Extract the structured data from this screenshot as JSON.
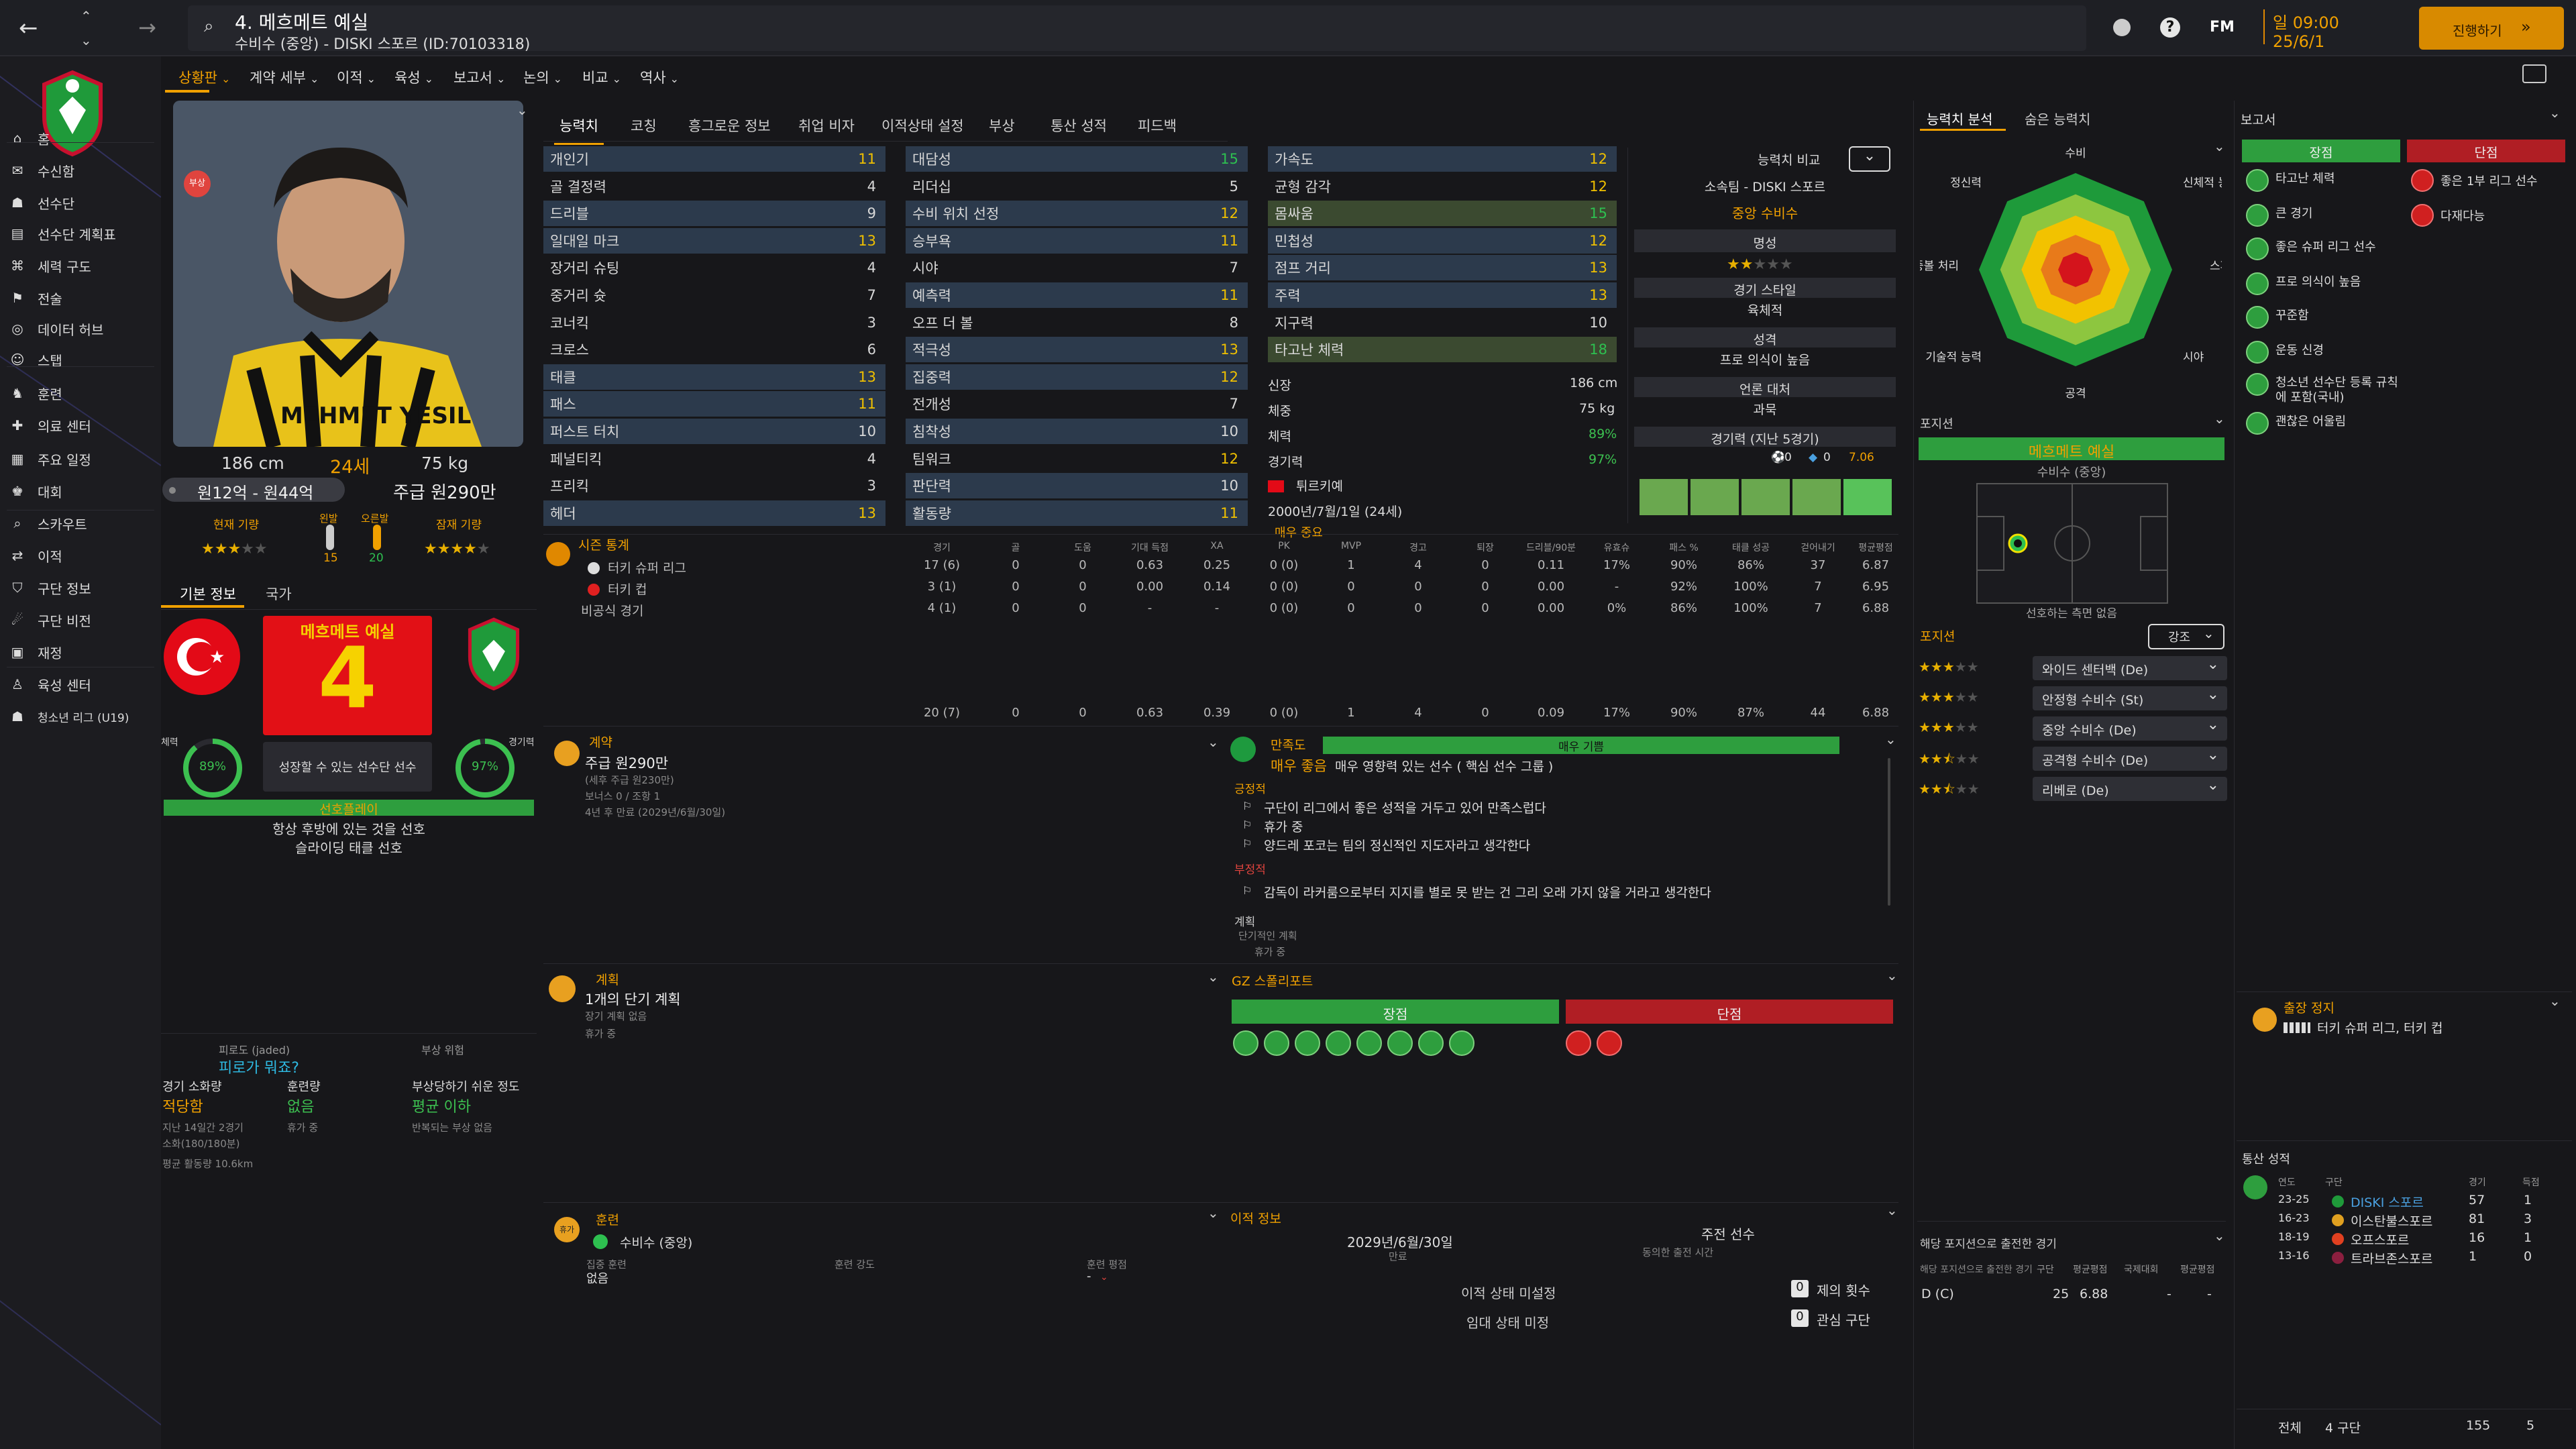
{
  "header": {
    "title": "4. 메흐메트 예실",
    "subtitle": "수비수 (중앙) - DISKI 스포르 (ID:70103318)",
    "date_line1": "일 09:00",
    "date_line2": "25/6/1",
    "continue": "진행하기",
    "fm": "FM",
    "help": "?"
  },
  "menus": [
    {
      "label": "상황판",
      "active": true
    },
    {
      "label": "계약 세부"
    },
    {
      "label": "이적"
    },
    {
      "label": "육성"
    },
    {
      "label": "보고서"
    },
    {
      "label": "논의"
    },
    {
      "label": "비교"
    },
    {
      "label": "역사"
    }
  ],
  "sidebar": [
    {
      "label": "홈"
    },
    {
      "label": "수신함"
    },
    {
      "label": "선수단"
    },
    {
      "label": "선수단 계획표"
    },
    {
      "label": "세력 구도"
    },
    {
      "label": "전술"
    },
    {
      "label": "데이터 허브"
    },
    {
      "label": "스탭"
    },
    {
      "label": "훈련"
    },
    {
      "label": "의료 센터"
    },
    {
      "label": "주요 일정"
    },
    {
      "label": "대회"
    },
    {
      "label": "스카우트"
    },
    {
      "label": "이적"
    },
    {
      "label": "구단 정보"
    },
    {
      "label": "구단 비전"
    },
    {
      "label": "재정"
    },
    {
      "label": "육성 센터"
    },
    {
      "label": "청소년 리그 (U19)"
    }
  ],
  "profile": {
    "injured_badge": "부상",
    "jersey_text": "MEHMET YESIL",
    "height": "186 cm",
    "age": "24세",
    "weight": "75 kg",
    "value": "원12억 - 원44억",
    "wage": "주급 원290만",
    "current_ability_label": "현재 기량",
    "potential_label": "잠재 기량",
    "current_stars": 3,
    "potential_stars": 4,
    "left_foot_label": "왼발",
    "right_foot_label": "오른발",
    "left_foot": "15",
    "right_foot": "20",
    "tab_basic": "기본 정보",
    "tab_nation": "국가",
    "name_card": "메흐메트 예실",
    "number": "4",
    "card_caption": "성장할 수 있는 선수단 선수",
    "fitness_label": "체력",
    "fitness": "89%",
    "condition_label": "경기력",
    "condition": "97%",
    "status_bar": "선호플레이",
    "pref1": "항상 후방에 있는 것을 선호",
    "pref2": "슬라이딩 태클 선호"
  },
  "fatigue": {
    "label": "피로도 (jaded)",
    "value": "피로가 뭐죠?",
    "injury_risk_label": "부상 위험",
    "load_label": "경기 소화량",
    "load_value": "적당함",
    "training_load_label": "훈련량",
    "training_value": "없음",
    "injury_prone_label": "부상당하기 쉬운 정도",
    "injury_prone_value": "평균 이하",
    "load_desc1": "지난 14일간 2경기",
    "load_desc2": "소화(180/180분)",
    "training_desc": "휴가 중",
    "injury_desc": "반복되는 부상 없음",
    "avg_distance": "평균 활동량 10.6km"
  },
  "tabs": [
    {
      "label": "능력치",
      "active": true
    },
    {
      "label": "코칭"
    },
    {
      "label": "흥그로운 정보"
    },
    {
      "label": "취업 비자"
    },
    {
      "label": "이적상태 설정"
    },
    {
      "label": "부상"
    },
    {
      "label": "통산 성적"
    },
    {
      "label": "피드백"
    }
  ],
  "attributes": {
    "technical": [
      [
        "개인기",
        "11"
      ],
      [
        "골 결정력",
        "4"
      ],
      [
        "드리블",
        "9"
      ],
      [
        "일대일 마크",
        "13"
      ],
      [
        "장거리 슈팅",
        "4"
      ],
      [
        "중거리 슛",
        "7"
      ],
      [
        "코너킥",
        "3"
      ],
      [
        "크로스",
        "6"
      ],
      [
        "태클",
        "13"
      ],
      [
        "패스",
        "11"
      ],
      [
        "퍼스트 터치",
        "10"
      ],
      [
        "페널티킥",
        "4"
      ],
      [
        "프리킥",
        "3"
      ],
      [
        "헤더",
        "13"
      ]
    ],
    "mental": [
      [
        "대담성",
        "15"
      ],
      [
        "리더십",
        "5"
      ],
      [
        "수비 위치 선정",
        "12"
      ],
      [
        "승부욕",
        "11"
      ],
      [
        "시야",
        "7"
      ],
      [
        "예측력",
        "11"
      ],
      [
        "오프 더 볼",
        "8"
      ],
      [
        "적극성",
        "13"
      ],
      [
        "집중력",
        "12"
      ],
      [
        "전개성",
        "7"
      ],
      [
        "침착성",
        "10"
      ],
      [
        "팀워크",
        "12"
      ],
      [
        "판단력",
        "10"
      ],
      [
        "활동량",
        "11"
      ]
    ],
    "physical": [
      [
        "가속도",
        "12"
      ],
      [
        "균형 감각",
        "12"
      ],
      [
        "몸싸움",
        "15"
      ],
      [
        "민첩성",
        "12"
      ],
      [
        "점프 거리",
        "13"
      ],
      [
        "주력",
        "13"
      ],
      [
        "지구력",
        "10"
      ],
      [
        "타고난 체력",
        "18"
      ]
    ]
  },
  "physical_info": {
    "height_label": "신장",
    "height": "186 cm",
    "weight_label": "체중",
    "weight": "75 kg",
    "fitness_label": "체력",
    "fitness": "89%",
    "condition_label": "경기력",
    "condition": "97%",
    "nationality": "튀르키예",
    "dob": "2000년/7월/1일 (24세)",
    "team_role": "매우 중요"
  },
  "compare": {
    "label": "능력치 비교",
    "club": "소속팀 - DISKI 스포르",
    "position": "중앙 수비수",
    "reputation_label": "명성",
    "reputation_stars": 2,
    "style_label": "경기 스타일",
    "style": "육체적",
    "personality_label": "성격",
    "personality": "프로 의식이 높음",
    "media_label": "언론 대처",
    "media": "과묵",
    "form_label": "경기력 (지난 5경기)",
    "form_goals": "0",
    "form_assists": "0",
    "form_rating": "7.06",
    "form_colors": [
      "#6aa84f",
      "#6aa84f",
      "#6aa84f",
      "#6aa84f",
      "#58c25a"
    ]
  },
  "analysis": {
    "tab1": "능력치 분석",
    "tab2": "숨은 능력치",
    "labels": [
      "수비",
      "신체적 능력",
      "스피드",
      "시야",
      "공격",
      "기술적 능력",
      "공중볼 처리",
      "정신력"
    ]
  },
  "position_panel": {
    "label": "포지션",
    "main": "메흐메트 예실",
    "main_sub": "수비수 (중앙)",
    "caption": "선호하는 측면 없음",
    "label2": "포지션",
    "mode": "강조",
    "roles": [
      {
        "stars": 3,
        "role": "와이드 센터백 (De)"
      },
      {
        "stars": 3,
        "role": "안정형 수비수 (St)"
      },
      {
        "stars": 3,
        "role": "중앙 수비수 (De)"
      },
      {
        "stars": 2.5,
        "role": "공격형 수비수 (De)"
      },
      {
        "stars": 2.5,
        "role": "리베로 (De)"
      }
    ]
  },
  "reports": {
    "label": "보고서",
    "strengths_label": "장점",
    "weaknesses_label": "단점",
    "strengths": [
      "타고난 체력",
      "큰 경기",
      "좋은 슈퍼 리그 선수",
      "프로 의식이 높음",
      "꾸준함",
      "운동 신경",
      "청소년 선수단 등록 규칙에 포함(국내)",
      "괜찮은 어울림"
    ],
    "weaknesses": [
      "좋은 1부 리그 선수",
      "다재다능"
    ]
  },
  "season_stats": {
    "label": "시즌 통계",
    "headers": [
      "경기",
      "골",
      "도움",
      "기대 득점",
      "XA",
      "PK",
      "MVP",
      "경고",
      "퇴장",
      "드리블/90분",
      "유효슈",
      "패스 %",
      "태클 성공",
      "걷어내기",
      "평균평점"
    ],
    "rows": [
      {
        "comp": "터키 슈퍼 리그",
        "vals": [
          "17 (6)",
          "0",
          "0",
          "0.63",
          "0.25",
          "0 (0)",
          "1",
          "4",
          "0",
          "0.11",
          "17%",
          "90%",
          "86%",
          "37",
          "6.87"
        ]
      },
      {
        "comp": "터키 컵",
        "vals": [
          "3 (1)",
          "0",
          "0",
          "0.00",
          "0.14",
          "0 (0)",
          "0",
          "0",
          "0",
          "0.00",
          "-",
          "92%",
          "100%",
          "7",
          "6.95"
        ]
      },
      {
        "comp": "비공식 경기",
        "vals": [
          "4 (1)",
          "0",
          "0",
          "-",
          "-",
          "0 (0)",
          "0",
          "0",
          "0",
          "0.00",
          "0%",
          "86%",
          "100%",
          "7",
          "6.88"
        ]
      }
    ],
    "total": [
      "20 (7)",
      "0",
      "0",
      "0.63",
      "0.39",
      "0 (0)",
      "1",
      "4",
      "0",
      "0.09",
      "17%",
      "90%",
      "87%",
      "44",
      "6.88"
    ]
  },
  "contract": {
    "label": "계약",
    "wage": "주급 원290만",
    "wage_sub": "(세후 주급 원230만)",
    "bonus": "보너스 0 / 조항 1",
    "expiry": "4년 후 만료 (2029년/6월/30일)"
  },
  "happiness": {
    "label": "만족도",
    "bar": "매우 기쁨",
    "level": "매우 좋음",
    "level_desc": "매우 영향력 있는 선수 ( 핵심 선수 그룹 )",
    "positive_label": "긍정적",
    "positives": [
      "구단이 리그에서 좋은 성적을 거두고 있어 만족스럽다",
      "휴가 중",
      "양드레 포코는 팀의 정신적인 지도자라고 생각한다"
    ],
    "negative_label": "부정적",
    "negatives": [
      "감독이 라커룸으로부터 지지를 별로 못 받는 건 그리 오래 가지 않을 거라고 생각한다"
    ],
    "plans_label": "계획",
    "plans_sub": "단기적인 계획",
    "plans_item": "휴가 중"
  },
  "plans": {
    "label": "계획",
    "title": "1개의 단기 계획",
    "long": "장기 계획 없음",
    "status": "휴가 중"
  },
  "gz": {
    "label": "GZ 스폴리포트",
    "strengths_label": "장점",
    "weaknesses_label": "단점"
  },
  "training": {
    "label": "훈련",
    "position": "수비수 (중앙)",
    "focus_label": "집중 훈련",
    "focus": "없음",
    "intensity_label": "훈련 강도",
    "rating_label": "훈련 평점",
    "rating": "-"
  },
  "transfer": {
    "label": "이적 정보",
    "expiry": "2029년/6월/30일",
    "expiry_label": "만료",
    "role": "주전 선수",
    "role_label": "동의한 출전 시간",
    "status1": "이적 상태 미설정",
    "status2": "임대 상태 미정",
    "offers_count": "0",
    "offers_label": "제의 횟수",
    "interest_count": "0",
    "interest_label": "관심 구단"
  },
  "games_by_position": {
    "label": "해당 포지션으로 출전한 경기",
    "sub": "해당 포지션으로 출전한 경기",
    "headers": [
      "구단",
      "평균평점",
      "국제대회",
      "평균평점"
    ],
    "row": [
      "D (C)",
      "25",
      "6.88",
      "-",
      "-"
    ]
  },
  "suspension": {
    "label": "출장 정지",
    "value": "터키 슈퍼 리그, 터키 컵"
  },
  "career": {
    "label": "통산 성적",
    "headers": [
      "연도",
      "구단",
      "경기",
      "득점"
    ],
    "rows": [
      [
        "23-25",
        "DISKI 스포르",
        "57",
        "1"
      ],
      [
        "16-23",
        "이스탄불스포르",
        "81",
        "3"
      ],
      [
        "18-19",
        "오프스포르",
        "16",
        "1"
      ],
      [
        "13-16",
        "트라브존스포르",
        "1",
        "0"
      ]
    ],
    "total_label": "전체",
    "total_clubs": "4 구단",
    "total_apps": "155",
    "total_goals": "5"
  },
  "colors": {
    "accent": "#f0a000",
    "green": "#2e9e3e",
    "red": "#b01e24",
    "panel": "#1f2024"
  }
}
